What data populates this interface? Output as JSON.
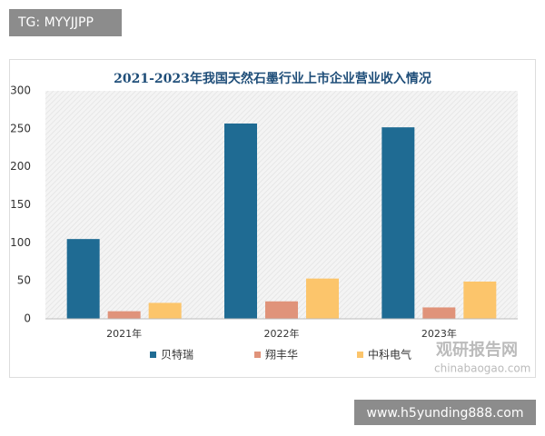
{
  "badge_top": "TG: MYYJJPP",
  "badge_bottom": "www.h5yunding888.com",
  "watermark": {
    "name": "观研报告网",
    "site": "chinabaogao.com"
  },
  "chart_data": {
    "type": "bar",
    "title": "2021-2023年我国天然石墨行业上市企业营业收入情况",
    "categories": [
      "2021年",
      "2022年",
      "2023年"
    ],
    "series": [
      {
        "name": "贝特瑞",
        "color": "#1f6b93",
        "values": [
          105,
          257,
          252
        ]
      },
      {
        "name": "翔丰华",
        "color": "#e0937a",
        "values": [
          10,
          23,
          15
        ]
      },
      {
        "name": "中科电气",
        "color": "#fcc56b",
        "values": [
          21,
          53,
          49
        ]
      }
    ],
    "ylim": [
      0,
      300
    ],
    "yticks": [
      0,
      50,
      100,
      150,
      200,
      250,
      300
    ],
    "grid": false,
    "legend": "bottom"
  }
}
